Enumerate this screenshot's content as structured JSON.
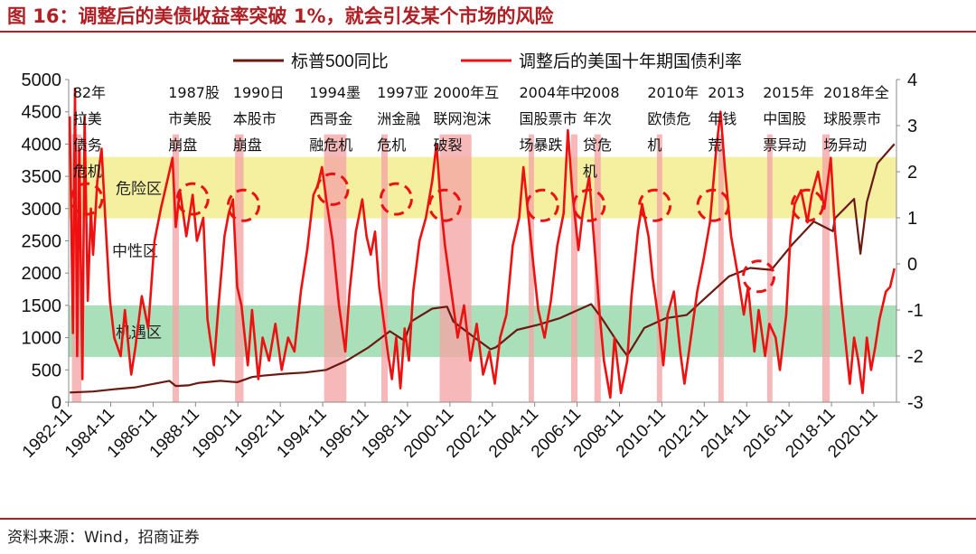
{
  "figure_title": "图 16：调整后的美债收益率突破 1%，就会引发某个市场的风险",
  "source": "资料来源：Wind，招商证券",
  "chart_data": {
    "type": "line",
    "x_ticks": [
      "1982-11",
      "1984-11",
      "1986-11",
      "1988-11",
      "1990-11",
      "1992-11",
      "1994-11",
      "1996-11",
      "1998-11",
      "2000-11",
      "2002-11",
      "2004-11",
      "2006-11",
      "2008-11",
      "2010-11",
      "2012-11",
      "2014-11",
      "2016-11",
      "2018-11",
      "2020-11"
    ],
    "x_range": [
      1982.85,
      2021.9
    ],
    "y_left": {
      "range": [
        0,
        5000
      ],
      "ticks": [
        "0",
        "500",
        "1000",
        "1500",
        "2000",
        "2500",
        "3000",
        "3500",
        "4000",
        "4500",
        "5000"
      ]
    },
    "y_right": {
      "range": [
        -3,
        4
      ],
      "ticks": [
        "-3",
        "-2",
        "-1",
        "0",
        "1",
        "2",
        "3",
        "4"
      ]
    },
    "legend_position": "top-center",
    "series": [
      {
        "name": "标普500同比",
        "axis": "left",
        "color": "#6b1a12",
        "points": [
          [
            1982.9,
            150
          ],
          [
            1984,
            165
          ],
          [
            1985,
            200
          ],
          [
            1986,
            230
          ],
          [
            1987.6,
            330
          ],
          [
            1987.9,
            250
          ],
          [
            1988.5,
            260
          ],
          [
            1989,
            300
          ],
          [
            1990,
            330
          ],
          [
            1990.8,
            310
          ],
          [
            1991.5,
            390
          ],
          [
            1992,
            410
          ],
          [
            1993,
            440
          ],
          [
            1994,
            460
          ],
          [
            1995,
            500
          ],
          [
            1996,
            650
          ],
          [
            1997,
            850
          ],
          [
            1998,
            1100
          ],
          [
            1998.7,
            950
          ],
          [
            1999,
            1250
          ],
          [
            2000,
            1450
          ],
          [
            2000.7,
            1480
          ],
          [
            2001,
            1250
          ],
          [
            2002,
            1000
          ],
          [
            2002.75,
            820
          ],
          [
            2003,
            850
          ],
          [
            2004,
            1120
          ],
          [
            2005,
            1200
          ],
          [
            2006,
            1300
          ],
          [
            2007.5,
            1520
          ],
          [
            2008,
            1300
          ],
          [
            2008.9,
            850
          ],
          [
            2009.2,
            720
          ],
          [
            2010,
            1150
          ],
          [
            2011,
            1300
          ],
          [
            2012,
            1350
          ],
          [
            2013,
            1650
          ],
          [
            2014,
            1950
          ],
          [
            2015,
            2080
          ],
          [
            2016,
            2050
          ],
          [
            2017,
            2450
          ],
          [
            2018,
            2800
          ],
          [
            2018.9,
            2650
          ],
          [
            2019,
            2850
          ],
          [
            2019.9,
            3150
          ],
          [
            2020.2,
            2300
          ],
          [
            2020.5,
            3100
          ],
          [
            2021,
            3700
          ],
          [
            2021.8,
            4000
          ]
        ]
      },
      {
        "name": "调整后的美国十年期国债利率",
        "axis": "right",
        "color": "#ee1111",
        "points": [
          [
            1982.9,
            3.2
          ],
          [
            1983.05,
            -1.5
          ],
          [
            1983.15,
            3.8
          ],
          [
            1983.25,
            -2.0
          ],
          [
            1983.35,
            2.5
          ],
          [
            1983.5,
            -2.5
          ],
          [
            1983.6,
            3.2
          ],
          [
            1983.75,
            -0.8
          ],
          [
            1983.9,
            1.2
          ],
          [
            1984,
            0.2
          ],
          [
            1984.2,
            1.8
          ],
          [
            1984.4,
            2.5
          ],
          [
            1984.6,
            0.8
          ],
          [
            1984.8,
            -0.8
          ],
          [
            1985,
            -1.6
          ],
          [
            1985.3,
            -2.0
          ],
          [
            1985.5,
            -1.0
          ],
          [
            1985.8,
            -2.4
          ],
          [
            1986,
            -1.8
          ],
          [
            1986.3,
            -0.7
          ],
          [
            1986.6,
            -1.4
          ],
          [
            1986.9,
            0.5
          ],
          [
            1987.2,
            1.2
          ],
          [
            1987.5,
            1.8
          ],
          [
            1987.75,
            2.3
          ],
          [
            1987.9,
            0.8
          ],
          [
            1988.1,
            1.6
          ],
          [
            1988.4,
            0.6
          ],
          [
            1988.7,
            1.5
          ],
          [
            1988.9,
            0.5
          ],
          [
            1989.2,
            1.0
          ],
          [
            1989.4,
            -1.2
          ],
          [
            1989.7,
            -2.2
          ],
          [
            1989.9,
            -1.0
          ],
          [
            1990.2,
            0.6
          ],
          [
            1990.4,
            1.1
          ],
          [
            1990.6,
            1.4
          ],
          [
            1990.8,
            -0.5
          ],
          [
            1991,
            -0.9
          ],
          [
            1991.3,
            -2.2
          ],
          [
            1991.5,
            -1.0
          ],
          [
            1991.8,
            -2.5
          ],
          [
            1992,
            -1.6
          ],
          [
            1992.3,
            -2.1
          ],
          [
            1992.6,
            -1.3
          ],
          [
            1992.9,
            -2.3
          ],
          [
            1993.2,
            -1.6
          ],
          [
            1993.5,
            -1.9
          ],
          [
            1993.8,
            -0.6
          ],
          [
            1994.1,
            0.3
          ],
          [
            1994.4,
            1.5
          ],
          [
            1994.6,
            1.7
          ],
          [
            1994.8,
            2.1
          ],
          [
            1995,
            1.4
          ],
          [
            1995.3,
            0.5
          ],
          [
            1995.6,
            -0.9
          ],
          [
            1995.9,
            -1.9
          ],
          [
            1996.1,
            -0.6
          ],
          [
            1996.4,
            0.7
          ],
          [
            1996.7,
            1.4
          ],
          [
            1996.9,
            0.6
          ],
          [
            1997.1,
            0.2
          ],
          [
            1997.3,
            0.7
          ],
          [
            1997.5,
            -0.5
          ],
          [
            1997.7,
            -1.2
          ],
          [
            1997.9,
            -1.9
          ],
          [
            1998.1,
            -2.5
          ],
          [
            1998.3,
            -1.6
          ],
          [
            1998.5,
            -2.7
          ],
          [
            1998.7,
            -1.4
          ],
          [
            1998.9,
            -2.1
          ],
          [
            1999.1,
            -0.6
          ],
          [
            1999.4,
            0.5
          ],
          [
            1999.7,
            1.0
          ],
          [
            2000,
            1.8
          ],
          [
            2000.2,
            2.6
          ],
          [
            2000.4,
            1.3
          ],
          [
            2000.6,
            0.4
          ],
          [
            2000.9,
            -0.6
          ],
          [
            2001.2,
            -1.6
          ],
          [
            2001.5,
            -0.9
          ],
          [
            2001.8,
            -2.1
          ],
          [
            2002.1,
            -1.3
          ],
          [
            2002.4,
            -2.4
          ],
          [
            2002.7,
            -1.9
          ],
          [
            2002.95,
            -2.6
          ],
          [
            2003.2,
            -1.6
          ],
          [
            2003.5,
            -1.1
          ],
          [
            2003.8,
            0.4
          ],
          [
            2004.1,
            1.0
          ],
          [
            2004.3,
            2.1
          ],
          [
            2004.5,
            1.2
          ],
          [
            2004.7,
            0.3
          ],
          [
            2005,
            -1.0
          ],
          [
            2005.3,
            -1.6
          ],
          [
            2005.6,
            -0.8
          ],
          [
            2005.9,
            0.4
          ],
          [
            2006.2,
            1.1
          ],
          [
            2006.4,
            2.9
          ],
          [
            2006.6,
            1.6
          ],
          [
            2006.9,
            0.3
          ],
          [
            2007.1,
            1.1
          ],
          [
            2007.4,
            1.9
          ],
          [
            2007.6,
            0.7
          ],
          [
            2007.9,
            -1.1
          ],
          [
            2008.1,
            -2.1
          ],
          [
            2008.4,
            -2.9
          ],
          [
            2008.6,
            -1.6
          ],
          [
            2008.9,
            -2.8
          ],
          [
            2009.2,
            -2.1
          ],
          [
            2009.4,
            -0.7
          ],
          [
            2009.7,
            0.7
          ],
          [
            2009.9,
            1.3
          ],
          [
            2010.2,
            0.6
          ],
          [
            2010.4,
            -0.3
          ],
          [
            2010.7,
            -1.3
          ],
          [
            2010.9,
            -2.2
          ],
          [
            2011.1,
            -1.1
          ],
          [
            2011.4,
            -0.6
          ],
          [
            2011.7,
            -1.9
          ],
          [
            2011.9,
            -2.6
          ],
          [
            2012.2,
            -1.6
          ],
          [
            2012.5,
            -0.6
          ],
          [
            2012.8,
            0.1
          ],
          [
            2013.1,
            0.9
          ],
          [
            2013.4,
            2.5
          ],
          [
            2013.6,
            3.3
          ],
          [
            2013.8,
            2.1
          ],
          [
            2014.1,
            0.6
          ],
          [
            2014.4,
            -0.2
          ],
          [
            2014.7,
            -1.1
          ],
          [
            2014.9,
            -0.5
          ],
          [
            2015.2,
            -1.9
          ],
          [
            2015.4,
            -1.0
          ],
          [
            2015.7,
            -2.0
          ],
          [
            2015.9,
            -1.3
          ],
          [
            2016.2,
            -1.6
          ],
          [
            2016.4,
            -2.3
          ],
          [
            2016.7,
            -1.1
          ],
          [
            2016.9,
            0.6
          ],
          [
            2017.1,
            1.3
          ],
          [
            2017.4,
            1.6
          ],
          [
            2017.7,
            0.9
          ],
          [
            2017.9,
            1.5
          ],
          [
            2018.2,
            2.0
          ],
          [
            2018.5,
            1.2
          ],
          [
            2018.8,
            2.3
          ],
          [
            2019,
            0.7
          ],
          [
            2019.3,
            -0.8
          ],
          [
            2019.5,
            -1.7
          ],
          [
            2019.7,
            -2.6
          ],
          [
            2019.9,
            -1.6
          ],
          [
            2020.1,
            -2.1
          ],
          [
            2020.3,
            -2.8
          ],
          [
            2020.5,
            -1.6
          ],
          [
            2020.7,
            -2.3
          ],
          [
            2020.9,
            -1.8
          ],
          [
            2021.1,
            -1.2
          ],
          [
            2021.4,
            -0.6
          ],
          [
            2021.6,
            -0.5
          ],
          [
            2021.8,
            -0.1
          ]
        ]
      }
    ],
    "zones": [
      {
        "label": "危险区",
        "y_from": 2850,
        "y_to": 3800,
        "color": "#f5f0a0"
      },
      {
        "label": "中性区",
        "y_from": 1500,
        "y_to": 2850,
        "color": ""
      },
      {
        "label": "机遇区",
        "y_from": 700,
        "y_to": 1500,
        "color": "#a9e0b9"
      }
    ],
    "crisis_bands": [
      [
        1983,
        1983.45
      ],
      [
        1987.75,
        1988.05
      ],
      [
        1990.7,
        1991.1
      ],
      [
        1994.9,
        1995.95
      ],
      [
        1997.6,
        1997.9
      ],
      [
        2000.35,
        2001.85
      ],
      [
        2004.55,
        2004.8
      ],
      [
        2006.55,
        2006.85
      ],
      [
        2007.65,
        2007.95
      ],
      [
        2010.6,
        2010.85
      ],
      [
        2013.5,
        2013.75
      ],
      [
        2015.8,
        2016.05
      ],
      [
        2018.4,
        2018.75
      ]
    ],
    "circles": [
      [
        1983.7,
        3150
      ],
      [
        1988.7,
        3150
      ],
      [
        1991.1,
        3050
      ],
      [
        1995.3,
        3300
      ],
      [
        1998.3,
        3150
      ],
      [
        2000.6,
        3050
      ],
      [
        2005.2,
        3050
      ],
      [
        2007.4,
        3050
      ],
      [
        2010.5,
        3050
      ],
      [
        2013.25,
        3050
      ],
      [
        2015.4,
        1950
      ],
      [
        2017.7,
        3050
      ]
    ],
    "annotations": [
      {
        "x": 1983.05,
        "lines": [
          "82年",
          "拉美",
          "债务",
          "危机"
        ]
      },
      {
        "x": 1987.55,
        "lines": [
          "1987股",
          "市美股",
          "崩盘"
        ]
      },
      {
        "x": 1990.6,
        "lines": [
          "1990日",
          "本股市",
          "崩盘"
        ]
      },
      {
        "x": 1994.2,
        "lines": [
          "1994墨",
          "西哥金",
          "融危机"
        ]
      },
      {
        "x": 1997.4,
        "lines": [
          "1997亚",
          "洲金融",
          "危机"
        ]
      },
      {
        "x": 2000.05,
        "lines": [
          "2000年互",
          "联网泡沫",
          "破裂"
        ]
      },
      {
        "x": 2004.1,
        "lines": [
          "2004年中",
          "国股票市",
          "场暴跌"
        ]
      },
      {
        "x": 2007.1,
        "lines": [
          "2008",
          "年次",
          "贷危",
          "机"
        ]
      },
      {
        "x": 2010.15,
        "lines": [
          "2010年",
          "欧债危",
          "机"
        ]
      },
      {
        "x": 2013.0,
        "lines": [
          "2013",
          "年钱",
          "荒"
        ]
      },
      {
        "x": 2015.6,
        "lines": [
          "2015年",
          "中国股",
          "票异动"
        ]
      },
      {
        "x": 2018.45,
        "lines": [
          "2018年全",
          "球股票市",
          "场异动"
        ]
      }
    ]
  }
}
